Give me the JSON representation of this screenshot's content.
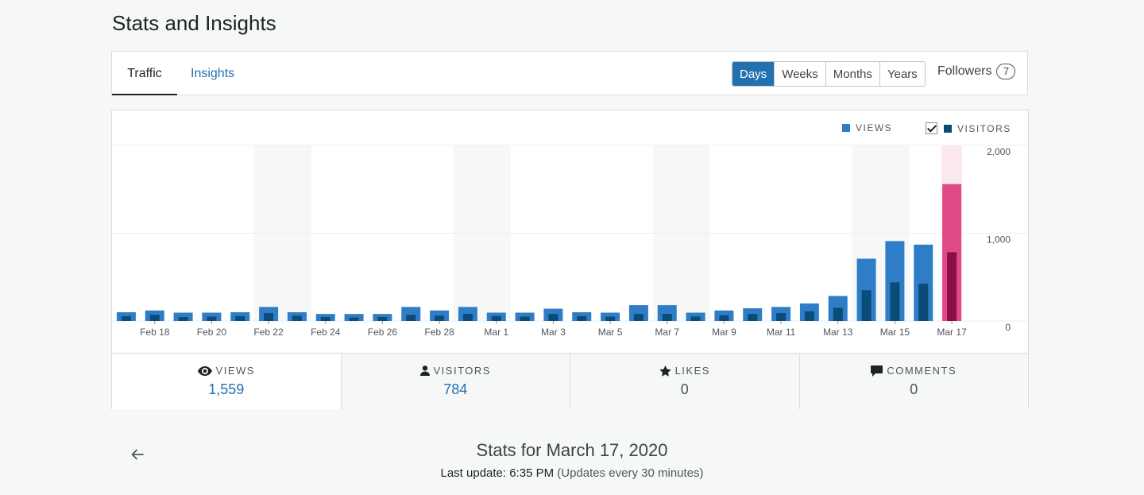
{
  "page": {
    "title": "Stats and Insights"
  },
  "tabs": [
    {
      "label": "Traffic",
      "active": true
    },
    {
      "label": "Insights",
      "active": false
    }
  ],
  "period_selector": {
    "options": [
      "Days",
      "Weeks",
      "Months",
      "Years"
    ],
    "selected": "Days"
  },
  "followers": {
    "label": "Followers",
    "count": "7"
  },
  "legend": {
    "views": "VIEWS",
    "visitors": "VISITORS",
    "visitors_checked": true
  },
  "colors": {
    "views": "#2e7dc6",
    "visitors": "#0a4b78",
    "selected_views": "#e04a87",
    "selected_visitors": "#8b0e45",
    "weekend_band": "#f6f7f7",
    "selected_band": "#fbe9ef"
  },
  "chart_data": {
    "type": "bar",
    "categories": [
      "Feb 17",
      "Feb 18",
      "Feb 19",
      "Feb 20",
      "Feb 21",
      "Feb 22",
      "Feb 23",
      "Feb 24",
      "Feb 25",
      "Feb 26",
      "Feb 27",
      "Feb 28",
      "Feb 29",
      "Mar 1",
      "Mar 2",
      "Mar 3",
      "Mar 4",
      "Mar 5",
      "Mar 6",
      "Mar 7",
      "Mar 8",
      "Mar 9",
      "Mar 10",
      "Mar 11",
      "Mar 12",
      "Mar 13",
      "Mar 14",
      "Mar 15",
      "Mar 16",
      "Mar 17"
    ],
    "tick_labels": [
      "Feb 18",
      "Feb 20",
      "Feb 22",
      "Feb 24",
      "Feb 26",
      "Feb 28",
      "Mar 1",
      "Mar 3",
      "Mar 5",
      "Mar 7",
      "Mar 9",
      "Mar 11",
      "Mar 13",
      "Mar 15",
      "Mar 17"
    ],
    "series": [
      {
        "name": "VIEWS",
        "values": [
          100,
          120,
          95,
          95,
          100,
          160,
          100,
          80,
          80,
          80,
          160,
          120,
          160,
          95,
          95,
          140,
          100,
          95,
          180,
          180,
          95,
          120,
          145,
          160,
          200,
          285,
          710,
          910,
          870,
          1559
        ]
      },
      {
        "name": "VISITORS",
        "values": [
          55,
          70,
          45,
          50,
          55,
          90,
          60,
          45,
          40,
          45,
          70,
          60,
          80,
          55,
          50,
          80,
          55,
          50,
          80,
          80,
          50,
          65,
          80,
          90,
          110,
          150,
          350,
          440,
          425,
          784
        ]
      }
    ],
    "ylim": [
      0,
      2000
    ],
    "yticks": [
      0,
      1000,
      2000
    ],
    "ytick_labels": [
      "0",
      "1,000",
      "2,000"
    ],
    "weekend_indices": [
      5,
      6,
      12,
      13,
      19,
      20,
      26,
      27
    ],
    "selected_index": 29,
    "grid": true
  },
  "summary": [
    {
      "key": "views",
      "label": "VIEWS",
      "value": "1,559"
    },
    {
      "key": "visitors",
      "label": "VISITORS",
      "value": "784"
    },
    {
      "key": "likes",
      "label": "LIKES",
      "value": "0"
    },
    {
      "key": "comments",
      "label": "COMMENTS",
      "value": "0"
    }
  ],
  "footer": {
    "stats_for": "Stats for March 17, 2020",
    "last_update": "Last update: 6:35 PM",
    "update_interval": "(Updates every 30 minutes)"
  }
}
